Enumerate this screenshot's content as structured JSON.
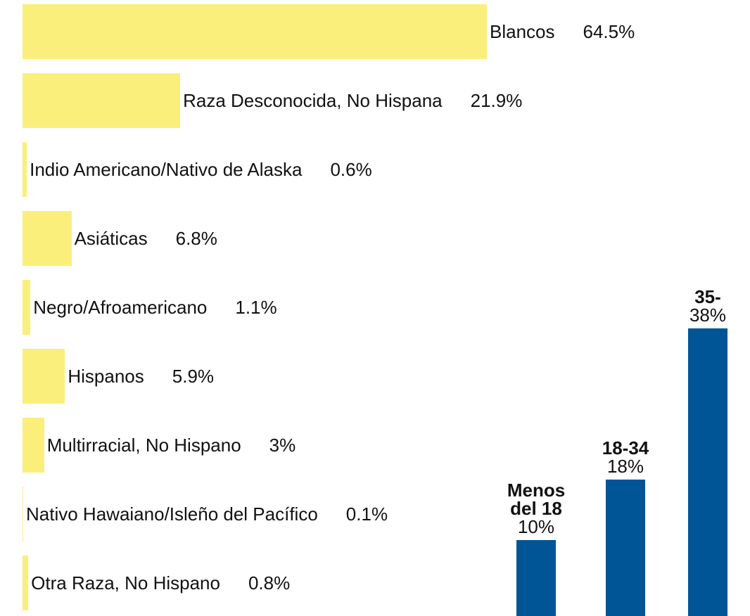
{
  "chart_data": [
    {
      "type": "hbar",
      "categories": [
        "Blancos",
        "Raza Desconocida, No Hispana",
        "Indio Americano/Nativo de Alaska",
        "Asiáticas",
        "Negro/Afroamericano",
        "Hispanos",
        "Multirracial, No Hispano",
        "Nativo Hawaiano/Isleño del Pacífico",
        "Otra Raza, No Hispano"
      ],
      "values": [
        64.5,
        21.9,
        0.6,
        6.8,
        1.1,
        5.9,
        3,
        0.1,
        0.8
      ],
      "value_labels": [
        "64.5%",
        "21.9%",
        "0.6%",
        "6.8%",
        "1.1%",
        "5.9%",
        "3%",
        "0.1%",
        "0.8%"
      ],
      "color": "#fbef7c"
    },
    {
      "type": "bar",
      "categories": [
        "Menos del 18",
        "18-34",
        "35-"
      ],
      "values": [
        10,
        18,
        38
      ],
      "value_labels": [
        "10%",
        "18%",
        "38%"
      ],
      "color": "#005596"
    }
  ]
}
